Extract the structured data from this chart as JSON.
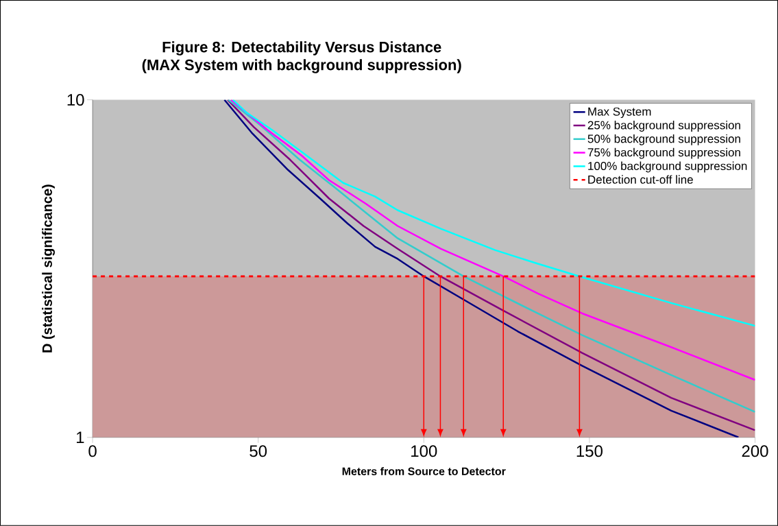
{
  "chart_data": {
    "type": "line",
    "title": "Figure 8: Detectability Versus Distance",
    "subtitle": "(MAX System with background suppression)",
    "xlabel": "Meters from Source to Detector",
    "ylabel": "D (statistical significance)",
    "xlim": [
      0,
      200
    ],
    "xticks": [
      0,
      50,
      100,
      150,
      200
    ],
    "ylim": [
      1,
      10
    ],
    "yticks": [
      1,
      10
    ],
    "log": true,
    "grid": false,
    "legend": "top right",
    "marker": "none",
    "series": [
      {
        "name": "Max System",
        "color": "#000080",
        "x": [
          39.8,
          48,
          59,
          68.7,
          77,
          85.3,
          92.1,
          100,
          112.6,
          128.4,
          147.8,
          174.7,
          195
        ],
        "values": [
          10,
          8.0,
          6.2,
          5.1,
          4.3,
          3.67,
          3.38,
          3.0,
          2.54,
          2.06,
          1.63,
          1.2,
          1.0
        ]
      },
      {
        "name": "25% background suppression",
        "color": "#800080",
        "x": [
          40.8,
          48.7,
          59.6,
          71.4,
          81.8,
          92.1,
          105,
          123.8,
          147.8,
          174.7,
          200
        ],
        "values": [
          10,
          8.3,
          6.65,
          5.1,
          4.23,
          3.62,
          3.0,
          2.38,
          1.78,
          1.31,
          1.05
        ]
      },
      {
        "name": "50% background suppression",
        "color": "#33cccc",
        "x": [
          41,
          50.7,
          62.5,
          72.9,
          82.4,
          92.1,
          112,
          134.4,
          147.8,
          174.7,
          200
        ],
        "values": [
          10,
          8.4,
          6.65,
          5.52,
          4.64,
          3.89,
          3.0,
          2.33,
          2.01,
          1.53,
          1.19
        ]
      },
      {
        "name": "75% background suppression",
        "color": "#ff00ff",
        "x": [
          41.8,
          52.8,
          63.1,
          71.4,
          82.4,
          92.1,
          105.2,
          124,
          134.4,
          147.8,
          174.7,
          200
        ],
        "values": [
          10,
          8.14,
          6.84,
          5.78,
          4.93,
          4.23,
          3.62,
          3.0,
          2.67,
          2.33,
          1.85,
          1.48
        ]
      },
      {
        "name": "100% background suppression",
        "color": "#00ffff",
        "x": [
          42.4,
          46.6,
          54.2,
          64.6,
          75.6,
          85.3,
          92.1,
          105.2,
          121.5,
          134.4,
          147,
          174.7,
          200
        ],
        "values": [
          10,
          9.15,
          8.14,
          6.84,
          5.68,
          5.17,
          4.71,
          4.15,
          3.59,
          3.27,
          3.0,
          2.5,
          2.14
        ]
      },
      {
        "name": "Detection cut-off line",
        "color": "#ff0000",
        "line_style": "dashed",
        "x": [
          0,
          200
        ],
        "values": [
          3,
          3
        ]
      }
    ],
    "bands": [
      {
        "axis": "y",
        "from": 1,
        "to": 3,
        "color": "#cc9999"
      }
    ],
    "ref_lines": [
      {
        "axis": "x",
        "value": 100,
        "color": "#ff0000"
      },
      {
        "axis": "x",
        "value": 105,
        "color": "#ff0000"
      },
      {
        "axis": "x",
        "value": 112,
        "color": "#ff0000"
      },
      {
        "axis": "x",
        "value": 124,
        "color": "#ff0000"
      },
      {
        "axis": "x",
        "value": 147,
        "color": "#ff0000"
      }
    ]
  }
}
